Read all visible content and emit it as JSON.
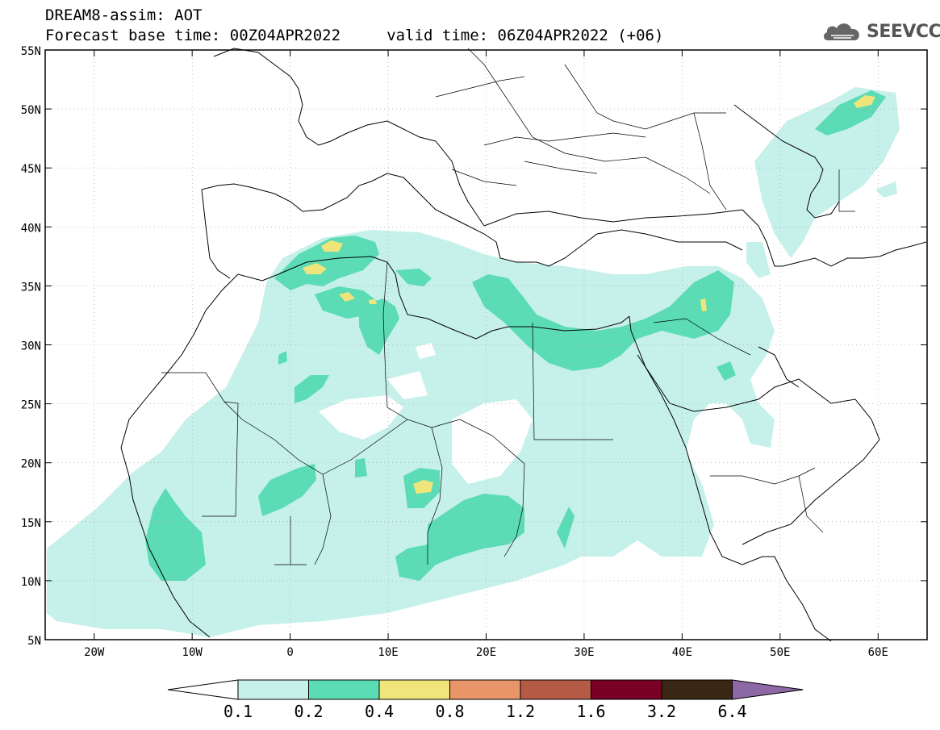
{
  "header": {
    "line1": "DREAM8-assim: AOT",
    "line2": "Forecast base time: 00Z04APR2022     valid time: 06Z04APR2022 (+06)"
  },
  "logo": {
    "text": "SEEVCCC",
    "icon": "cloud-icon"
  },
  "map": {
    "lon_range": [
      -25,
      65
    ],
    "lat_range": [
      5,
      55
    ],
    "lat_ticks": [
      "55N",
      "50N",
      "45N",
      "40N",
      "35N",
      "30N",
      "25N",
      "20N",
      "15N",
      "10N",
      "5N"
    ],
    "lon_ticks": [
      "20W",
      "10W",
      "0",
      "10E",
      "20E",
      "30E",
      "40E",
      "50E",
      "60E"
    ],
    "grid": "dotted"
  },
  "colorbar": {
    "labels": [
      "0.1",
      "0.2",
      "0.4",
      "0.8",
      "1.2",
      "1.6",
      "3.2",
      "6.4"
    ],
    "colors": [
      "#c6f0ea",
      "#5bdcb4",
      "#f0e57a",
      "#e8956a",
      "#b45a45",
      "#7a0025",
      "#3a2615",
      "#8c68a4"
    ]
  }
}
